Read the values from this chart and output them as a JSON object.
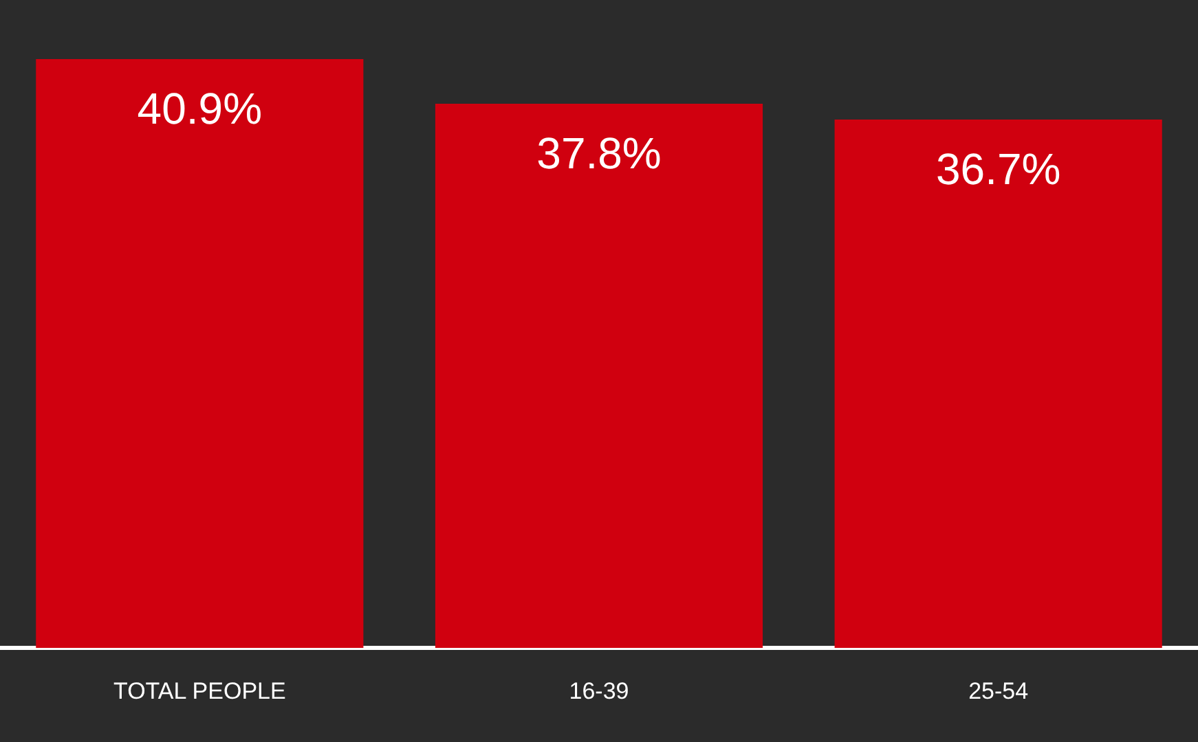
{
  "chart_data": {
    "type": "bar",
    "categories": [
      "TOTAL PEOPLE",
      "16-39",
      "25-54"
    ],
    "values": [
      40.9,
      37.8,
      36.7
    ],
    "color": "#d0000f",
    "data_labels": true,
    "value_labels": [
      "40.9%",
      "37.8%",
      "36.7%"
    ]
  }
}
